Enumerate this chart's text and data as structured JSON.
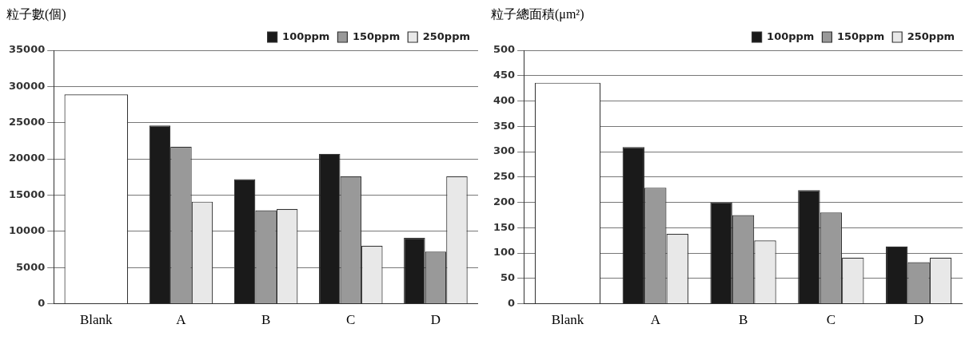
{
  "chart_data": [
    {
      "type": "bar",
      "ylabel": "粒子數(個)",
      "categories": [
        "Blank",
        "A",
        "B",
        "C",
        "D"
      ],
      "series": [
        {
          "color": "#ffffff",
          "values": [
            28900,
            null,
            null,
            null,
            null
          ]
        },
        {
          "name": "100ppm",
          "color": "#1a1a1a",
          "values": [
            null,
            24600,
            17200,
            20700,
            9100
          ]
        },
        {
          "name": "150ppm",
          "color": "#999999",
          "values": [
            null,
            21700,
            12900,
            17600,
            7200
          ]
        },
        {
          "name": "250ppm",
          "color": "#e8e8e8",
          "values": [
            null,
            14100,
            13100,
            8000,
            17600
          ]
        }
      ],
      "ylim": [
        0,
        35000
      ],
      "yticks": [
        0,
        5000,
        10000,
        15000,
        20000,
        25000,
        30000,
        35000
      ],
      "grid": "y",
      "legend": "top right"
    },
    {
      "type": "bar",
      "ylabel": "粒子總面積(μm²)",
      "categories": [
        "Blank",
        "A",
        "B",
        "C",
        "D"
      ],
      "series": [
        {
          "color": "#ffffff",
          "values": [
            436,
            null,
            null,
            null,
            null
          ]
        },
        {
          "name": "100ppm",
          "color": "#1a1a1a",
          "values": [
            null,
            309,
            200,
            224,
            113
          ]
        },
        {
          "name": "150ppm",
          "color": "#999999",
          "values": [
            null,
            229,
            175,
            180,
            82
          ]
        },
        {
          "name": "250ppm",
          "color": "#e8e8e8",
          "values": [
            null,
            138,
            125,
            91,
            91
          ]
        }
      ],
      "ylim": [
        0,
        500
      ],
      "yticks": [
        0,
        50,
        100,
        150,
        200,
        250,
        300,
        350,
        400,
        450,
        500
      ],
      "grid": "y",
      "legend": "top right"
    }
  ]
}
